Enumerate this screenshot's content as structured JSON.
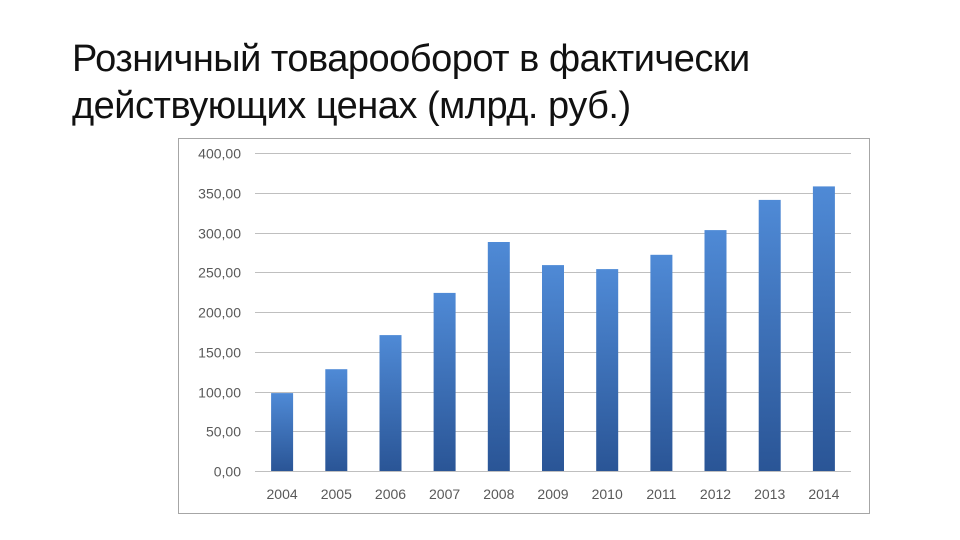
{
  "slide": {
    "title_line1": "Розничный товарооборот в фактически",
    "title_line2": "действующих ценах (млрд. руб.)"
  },
  "colors": {
    "bar_top": "#4f8ad6",
    "bar_bottom": "#2a5596",
    "grid": "#bfbfbf",
    "frame": "#a6a6a6",
    "tick_text": "#595959"
  },
  "chart_data": {
    "type": "bar",
    "title": "",
    "xlabel": "",
    "ylabel": "",
    "categories": [
      "2004",
      "2005",
      "2006",
      "2007",
      "2008",
      "2009",
      "2010",
      "2011",
      "2012",
      "2013",
      "2014"
    ],
    "values": [
      98,
      128,
      171,
      224,
      288,
      259,
      254,
      272,
      303,
      341,
      358
    ],
    "ylim": [
      0,
      400
    ],
    "yticks": [
      0,
      50,
      100,
      150,
      200,
      250,
      300,
      350,
      400
    ],
    "ytick_labels": [
      "0,00",
      "50,00",
      "100,00",
      "150,00",
      "200,00",
      "250,00",
      "300,00",
      "350,00",
      "400,00"
    ],
    "grid": true,
    "legend": "none"
  }
}
